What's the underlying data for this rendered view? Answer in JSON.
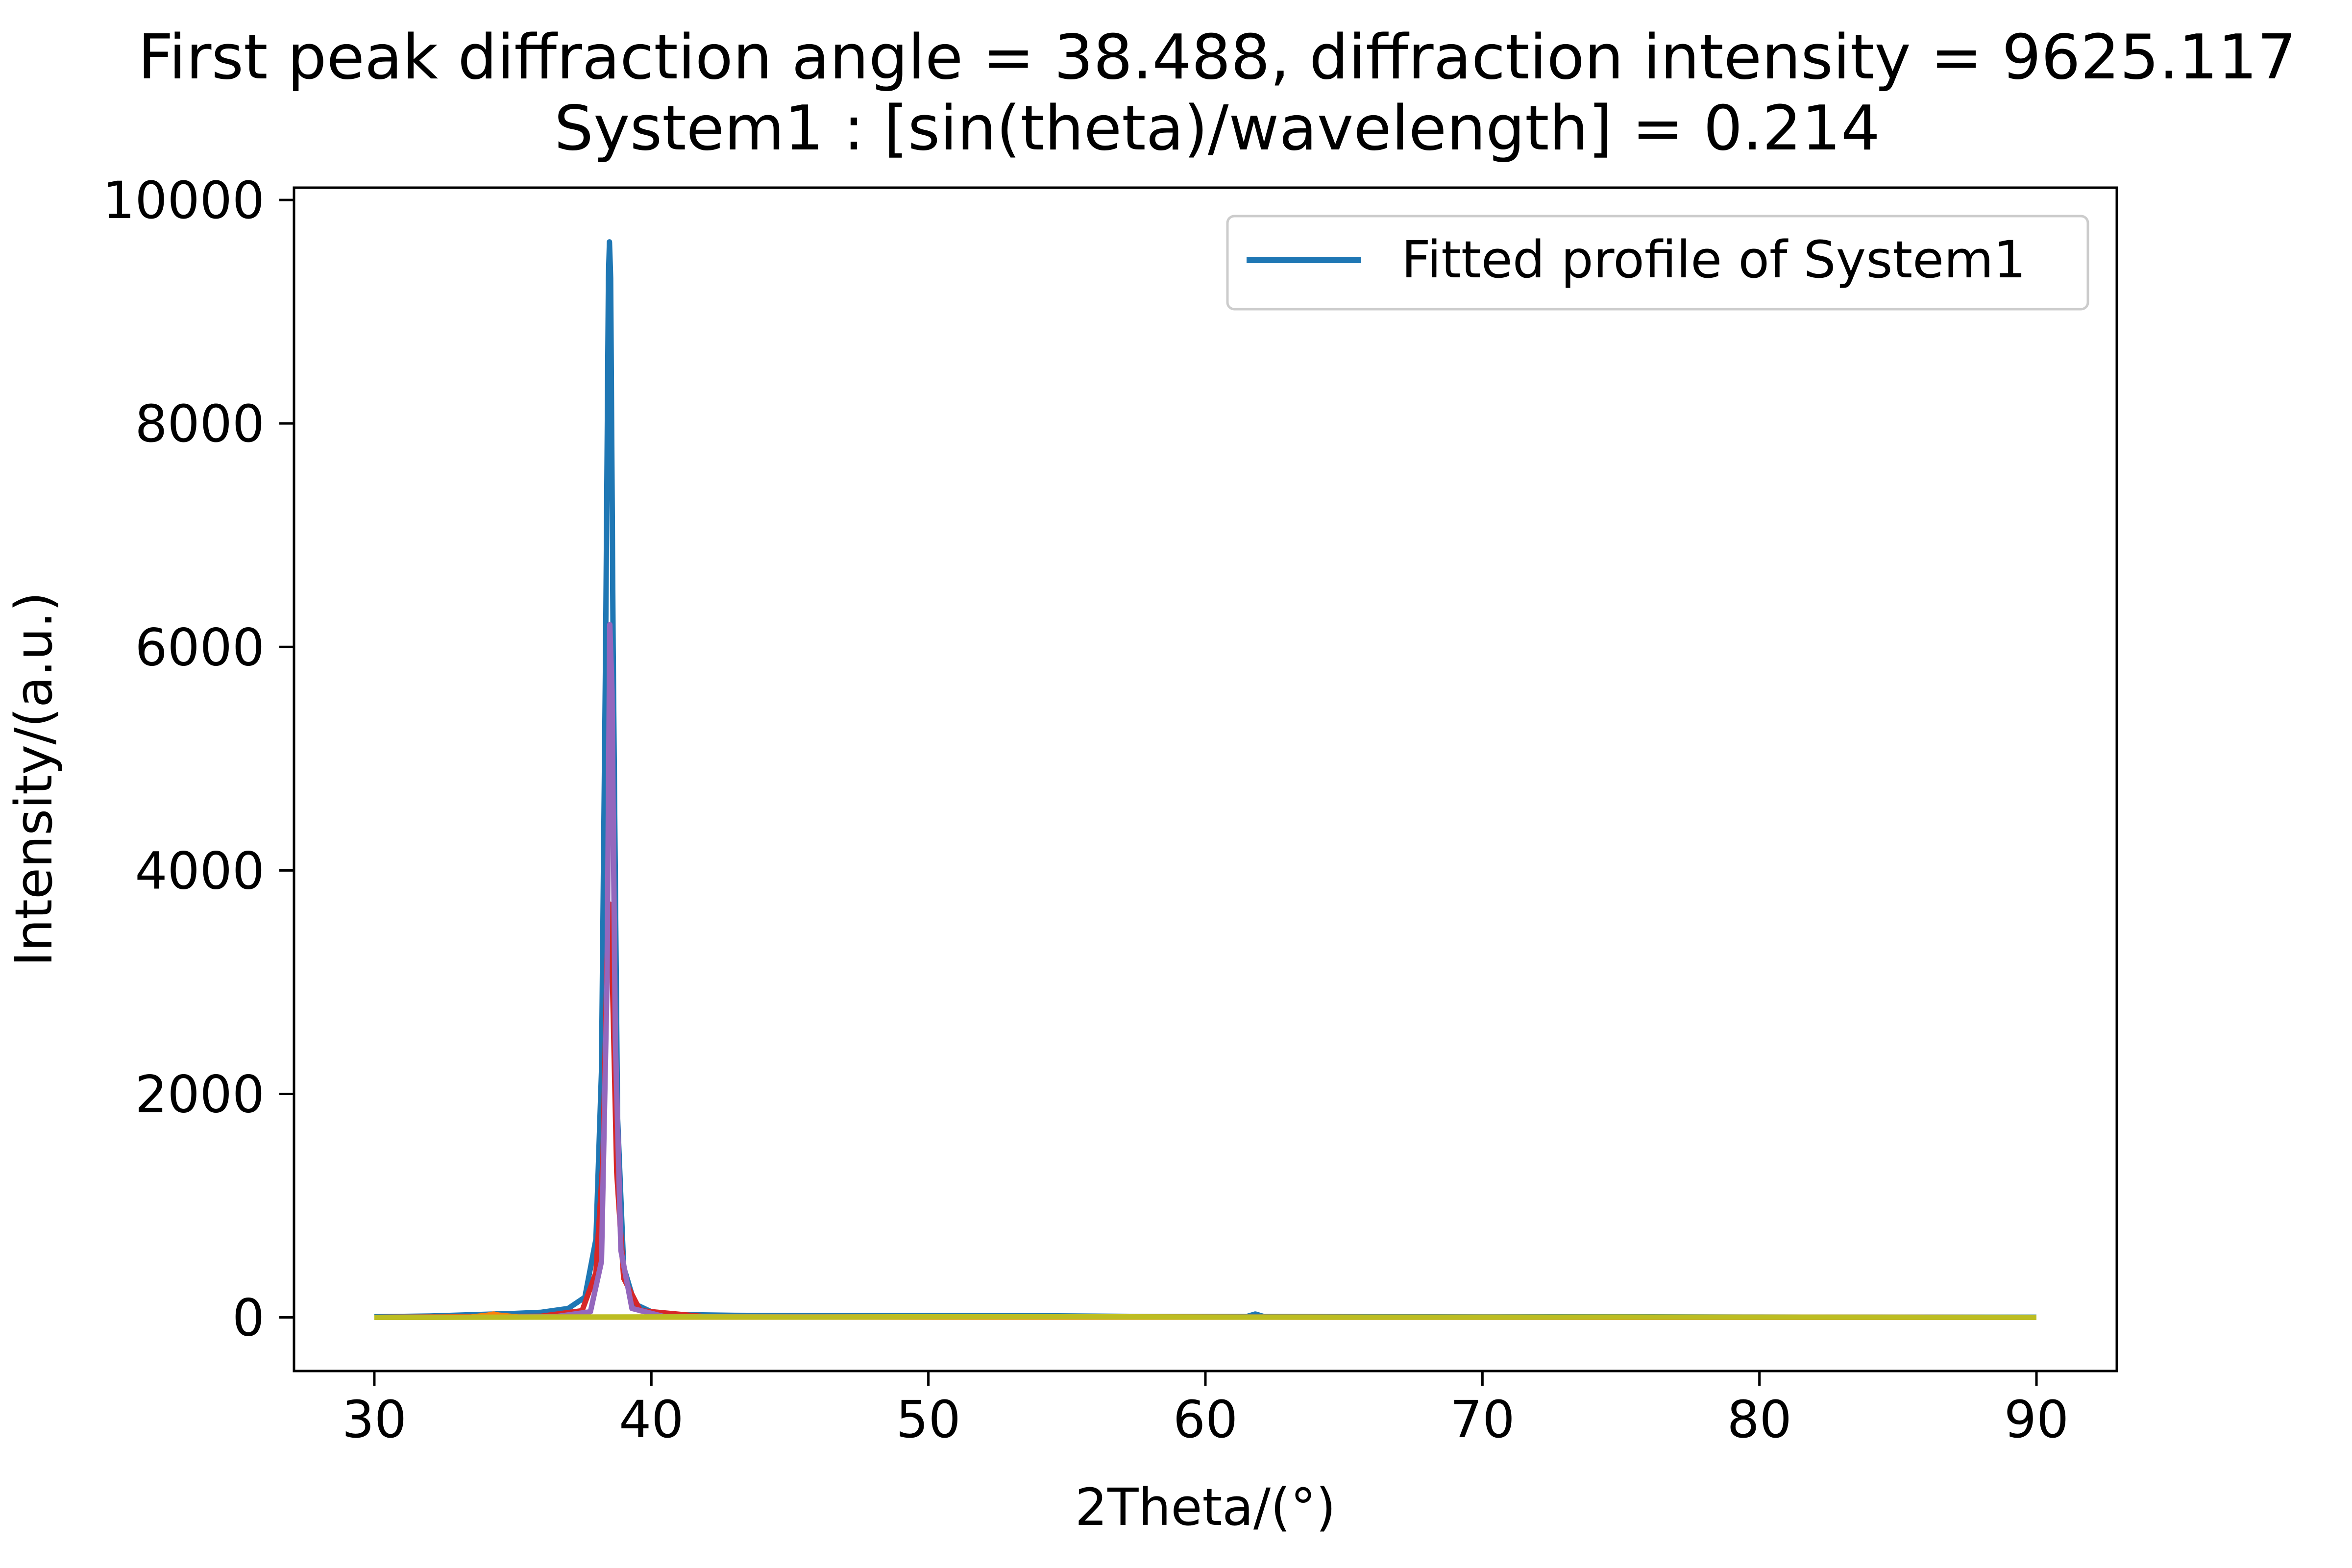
{
  "chart_data": {
    "type": "line",
    "title": "First peak diffraction angle = 38.488, diffraction intensity = 9625.117",
    "subtitle": "System1 : [sin(theta)/wavelength] = 0.214",
    "xlabel": "2Theta/(°)",
    "ylabel": "Intensity/(a.u.)",
    "xlim": [
      27.1,
      92.9
    ],
    "ylim": [
      -480,
      10110
    ],
    "xticks": [
      30,
      40,
      50,
      60,
      70,
      80,
      90
    ],
    "yticks": [
      0,
      2000,
      4000,
      6000,
      8000,
      10000
    ],
    "grid": false,
    "legend": {
      "placement": "top-right",
      "entries": [
        "Fitted profile of System1"
      ]
    },
    "series": [
      {
        "name": "Fitted profile of System1",
        "color": "#1f77b4",
        "x": [
          30,
          32,
          34,
          35,
          36,
          37,
          37.6,
          38.0,
          38.2,
          38.35,
          38.45,
          38.488,
          38.53,
          38.62,
          38.78,
          39.0,
          39.4,
          40,
          41,
          43,
          46,
          50,
          54,
          58,
          61.5,
          61.8,
          62.1,
          66,
          70,
          75,
          80,
          85,
          90
        ],
        "y": [
          5,
          12,
          28,
          35,
          45,
          80,
          180,
          700,
          2200,
          6000,
          9300,
          9625,
          9300,
          6000,
          1800,
          450,
          120,
          50,
          25,
          18,
          15,
          16,
          14,
          8,
          8,
          30,
          8,
          5,
          4,
          5,
          3,
          2,
          2
        ]
      },
      {
        "color": "#d62728",
        "x": [
          30,
          36,
          37.5,
          38.0,
          38.25,
          38.4,
          38.488,
          38.58,
          38.75,
          39.0,
          39.6,
          42,
          90
        ],
        "y": [
          0,
          10,
          60,
          400,
          1400,
          3200,
          3700,
          3200,
          1300,
          350,
          60,
          5,
          0
        ]
      },
      {
        "color": "#9467bd",
        "x": [
          30,
          36.5,
          37.8,
          38.2,
          38.4,
          38.5,
          38.58,
          38.7,
          38.9,
          39.3,
          40.5,
          90
        ],
        "y": [
          0,
          5,
          50,
          500,
          3000,
          6200,
          5600,
          2500,
          600,
          80,
          5,
          0
        ]
      },
      {
        "color": "#ff7f0e",
        "x": [
          30,
          33.5,
          34.1,
          34.3,
          34.5,
          35.2,
          90
        ],
        "y": [
          0,
          3,
          20,
          30,
          20,
          3,
          0
        ]
      },
      {
        "color": "#bcbd22",
        "x": [
          30,
          35,
          40,
          45,
          50,
          55,
          60,
          65,
          70,
          75,
          80,
          85,
          90
        ],
        "y": [
          0,
          2,
          4,
          3,
          5,
          6,
          3,
          2,
          2,
          3,
          2,
          1,
          0
        ]
      }
    ]
  }
}
